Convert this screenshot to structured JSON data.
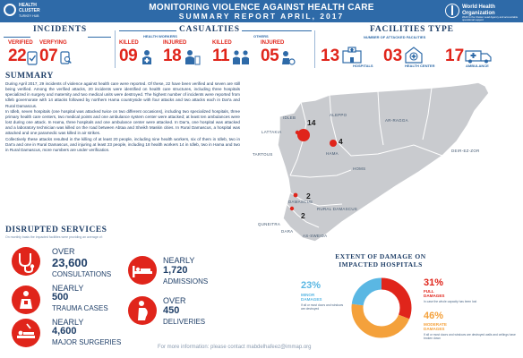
{
  "header": {
    "cluster_logo": {
      "line1": "HEALTH",
      "line2": "CLUSTER",
      "line3": "TURKEY HUB"
    },
    "title": "MONITORING VIOLENCE AGAINST HEALTH CARE",
    "subtitle": "SUMMARY REPORT APRIL, 2017",
    "who_logo": {
      "line1": "World Health",
      "line2": "Organization",
      "line3": "WHO is the Cluster Lead Agency and accountable operational support"
    }
  },
  "incidents": {
    "title": "INCIDENTS",
    "verified": {
      "label": "VERIFIED",
      "value": "22"
    },
    "verifying": {
      "label": "VERFYING",
      "value": "07"
    }
  },
  "casualties": {
    "title": "CASUALTIES",
    "health_workers_label": "HEALTH WORKERS",
    "others_label": "OTHERS",
    "hw_killed": {
      "label": "KILLED",
      "value": "09"
    },
    "hw_injured": {
      "label": "INJURED",
      "value": "18"
    },
    "oth_killed": {
      "label": "KILLED",
      "value": "11"
    },
    "oth_injured": {
      "label": "INJURED",
      "value": "05"
    }
  },
  "facilities": {
    "title": "FACILITIES TYPE",
    "subtitle": "NUMBER OF ATTACKED FACILITIES",
    "hospitals": {
      "value": "13",
      "label": "HOSPITALS"
    },
    "health_center": {
      "value": "03",
      "label": "HEALTH CENTER"
    },
    "ambulance": {
      "value": "17",
      "label": "AMBULANCE"
    }
  },
  "summary": {
    "title": "SUMMARY",
    "paragraphs": [
      "During April 2017, 29 incidents of violence against health care were reported. Of these, 22 have been verified and seven are still being verified. Among the verified attacks, 20 incidents were identified on health care structures, including three hospitals specialized in surgery and maternity and two medical units were destroyed. The highest number of incidents were reported from Idleb governorate with 14 attacks followed by northern Hama countryside with four attacks and two attacks each in Dar'a and Rural Damascus.",
      "In Idleb, seven hospitals (one hospital was attacked twice on two different occasions), including two specialized hospitals, three primary health care centers, two medical points and one ambulance system center were attacked; at least ten ambulances were lost during one attack. In Hama, three hospitals and one ambulance center were attacked. In Dar'a, one hospital was attacked and a laboratory technician was killed on the road between Abtaa and Sheikh Maskin cities. In Rural Damascus, a hospital was attacked and one paramedic was killed in air strikes.",
      "Collectively these attacks resulted in the killing of at least 20 people, including nine health workers, six of them in Idleb, two in Dar'a and one in Rural Damascus, and injuring at least 23 people, including 18 health workers 14 in Idleb, two in Hama and two in Rural Damascus, more numbers are under verification."
    ]
  },
  "map": {
    "labels": {
      "aleppo": "ALEPPO",
      "idleb": "IDLEB",
      "ar_ragga": "AR-RAGGA",
      "lattakia": "LATTAKIA",
      "hama": "HAMA",
      "deir_ez_zor": "DEIR-EZ-ZOR",
      "tartous": "TARTOUS",
      "homs": "HOMS",
      "damascus": "DAMASCUS",
      "rural_damascus": "RURAL DAMASCUS",
      "quneitra": "QUNEITRA",
      "dara": "DARA",
      "as_sweida": "AS-SWEIDA"
    },
    "counts": {
      "idleb": "14",
      "hama": "4",
      "rural_damascus": "2",
      "dara": "2"
    }
  },
  "disrupted": {
    "title": "DISRUPTED SERVICES",
    "subtitle": "On monthly basis the impacted facilities were providing an average of:",
    "items": {
      "consultations": {
        "prefix": "OVER",
        "value": "23,600",
        "label": "CONSULTATIONS"
      },
      "trauma": {
        "prefix": "NEARLY",
        "value": "500",
        "label": "TRAUMA CASES"
      },
      "surgeries": {
        "prefix": "NEARLY",
        "value": "4,600",
        "label": "MAJOR SURGERIES"
      },
      "admissions": {
        "prefix": "NEARLY",
        "value": "1,720",
        "label": "ADMISSIONS"
      },
      "deliveries": {
        "prefix": "OVER",
        "value": "450",
        "label": "DELIVERIES"
      }
    }
  },
  "damage": {
    "title_line1": "EXTENT OF DAMAGE ON",
    "title_line2": "IMPACTED HOSPITALS",
    "minor": {
      "pct": "23%",
      "label1": "MINOR",
      "label2": "DAMAGES",
      "desc": "If all or most doors and windows are destroyed",
      "color": "#5ab7e3",
      "fraction": 0.23
    },
    "full": {
      "pct": "31%",
      "label1": "FULL",
      "label2": "DAMAGES",
      "desc": "In case the whole capacity has been lost",
      "color": "#e0251b",
      "fraction": 0.31
    },
    "moderate": {
      "pct": "46%",
      "label1": "MODERATE",
      "label2": "DAMAGES",
      "desc": "If all or most doors and windows are destroyed walls and ceilings have broken down",
      "color": "#f4a13b",
      "fraction": 0.46
    }
  },
  "footer": {
    "contact": "For more information: please contact mabdelhafeez@immap.org"
  }
}
